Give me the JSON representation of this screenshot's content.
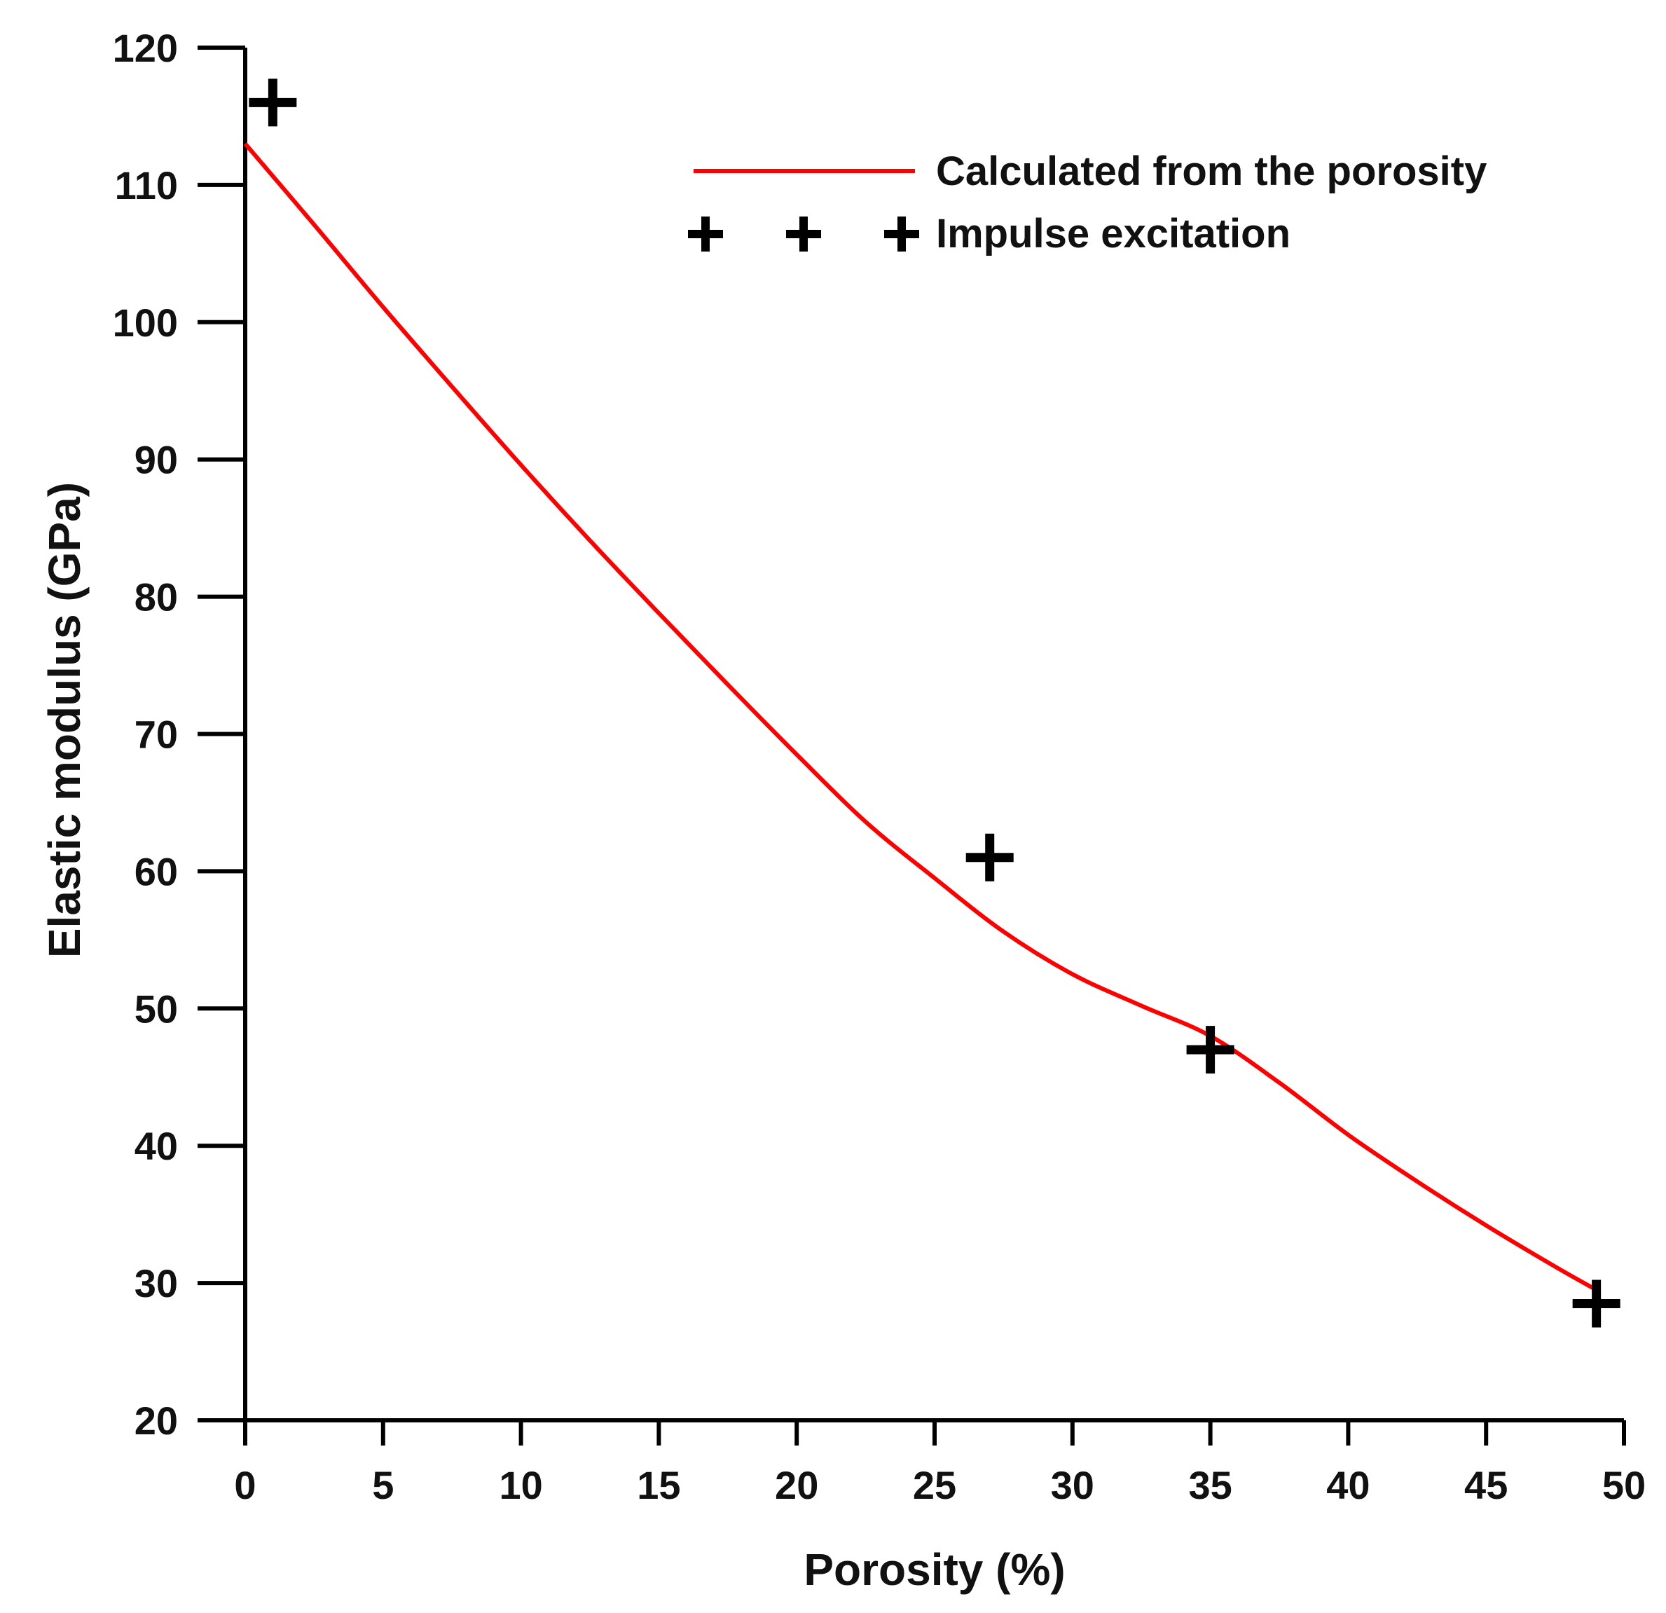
{
  "chart_data": {
    "type": "line",
    "title": "",
    "xlabel": "Porosity (%)",
    "ylabel": "Elastic modulus (GPa)",
    "xlim": [
      0,
      50
    ],
    "ylim": [
      20,
      120
    ],
    "xticks": [
      0,
      5,
      10,
      15,
      20,
      25,
      30,
      35,
      40,
      45,
      50
    ],
    "yticks": [
      20,
      30,
      40,
      50,
      60,
      70,
      80,
      90,
      100,
      110,
      120
    ],
    "grid": false,
    "legend_position": "top-right",
    "series": [
      {
        "name": "Calculated from the porosity",
        "kind": "line",
        "color": "#ff0000",
        "x": [
          0,
          2.5,
          5,
          7.5,
          10,
          12.5,
          15,
          17.5,
          20,
          22.5,
          25,
          27.5,
          30,
          32.5,
          35,
          37.5,
          40,
          42.5,
          45,
          47.5,
          49
        ],
        "y": [
          113,
          107.1,
          101.1,
          95.3,
          89.6,
          84.1,
          78.8,
          73.6,
          68.5,
          63.6,
          59.5,
          55.6,
          52.5,
          50.2,
          48,
          44.6,
          40.8,
          37.4,
          34.2,
          31.2,
          29.5
        ]
      },
      {
        "name": "Impulse excitation",
        "kind": "scatter",
        "color": "#000000",
        "marker": "plus",
        "x": [
          1,
          27,
          35,
          49
        ],
        "y": [
          116,
          61,
          47,
          28.5
        ]
      }
    ]
  }
}
